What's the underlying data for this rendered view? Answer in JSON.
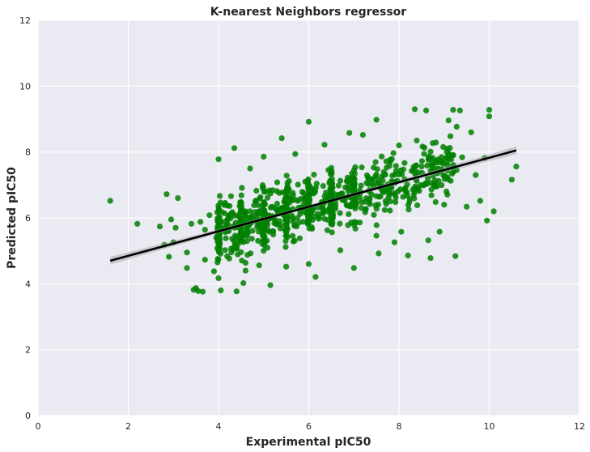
{
  "chart_data": {
    "type": "scatter",
    "title": "K-nearest Neighbors regressor",
    "xlabel": "Experimental pIC50",
    "ylabel": "Predicted pIC50",
    "xlim": [
      0,
      12
    ],
    "ylim": [
      0,
      12
    ],
    "x_ticks": [
      "0",
      "2",
      "4",
      "6",
      "8",
      "10",
      "12"
    ],
    "y_ticks": [
      "0",
      "2",
      "4",
      "6",
      "8",
      "10",
      "12"
    ],
    "grid": true,
    "legend": "none",
    "point_color": "#008000",
    "background_color": "#eaeaf2",
    "regression_line": {
      "color": "#000000",
      "x_start": 1.6,
      "y_start": 4.7,
      "x_end": 10.6,
      "y_end": 8.05,
      "ci_halfwidth_ends": 0.12,
      "ci_halfwidth_mid": 0.05
    },
    "series": [
      {
        "points": [
          [
            1.6,
            6.52
          ],
          [
            2.2,
            5.82
          ],
          [
            2.7,
            5.74
          ],
          [
            2.8,
            5.18
          ],
          [
            2.85,
            6.72
          ],
          [
            2.9,
            4.82
          ],
          [
            2.95,
            5.95
          ],
          [
            3.0,
            5.26
          ],
          [
            3.05,
            5.7
          ],
          [
            3.1,
            6.6
          ],
          [
            3.3,
            4.95
          ],
          [
            3.3,
            4.48
          ],
          [
            3.4,
            5.82
          ],
          [
            3.45,
            3.82
          ],
          [
            3.5,
            3.87
          ],
          [
            3.55,
            3.78
          ],
          [
            3.6,
            5.88
          ],
          [
            3.65,
            3.76
          ],
          [
            3.7,
            4.73
          ],
          [
            3.7,
            5.64
          ],
          [
            3.8,
            6.08
          ],
          [
            3.9,
            4.38
          ],
          [
            3.95,
            5.4
          ],
          [
            4.0,
            7.78
          ],
          [
            4.0,
            4.17
          ],
          [
            4.05,
            3.8
          ],
          [
            4.35,
            8.12
          ],
          [
            4.4,
            3.77
          ],
          [
            4.4,
            5.08
          ],
          [
            4.5,
            6.48
          ],
          [
            4.55,
            4.02
          ],
          [
            4.6,
            4.4
          ],
          [
            4.7,
            7.5
          ],
          [
            4.8,
            5.94
          ],
          [
            4.9,
            4.56
          ],
          [
            5.0,
            7.86
          ],
          [
            5.0,
            6.22
          ],
          [
            5.15,
            3.96
          ],
          [
            5.3,
            7.08
          ],
          [
            5.4,
            8.42
          ],
          [
            5.5,
            4.52
          ],
          [
            5.7,
            7.94
          ],
          [
            5.8,
            5.38
          ],
          [
            6.0,
            8.92
          ],
          [
            6.0,
            4.6
          ],
          [
            6.15,
            4.21
          ],
          [
            6.35,
            8.22
          ],
          [
            6.5,
            7.52
          ],
          [
            6.7,
            5.02
          ],
          [
            6.9,
            8.58
          ],
          [
            7.0,
            4.48
          ],
          [
            7.05,
            5.86
          ],
          [
            7.2,
            8.52
          ],
          [
            7.35,
            6.42
          ],
          [
            7.5,
            8.98
          ],
          [
            7.5,
            5.46
          ],
          [
            7.55,
            4.92
          ],
          [
            7.8,
            7.76
          ],
          [
            7.9,
            5.26
          ],
          [
            8.0,
            8.2
          ],
          [
            8.05,
            5.58
          ],
          [
            8.2,
            4.86
          ],
          [
            8.35,
            9.3
          ],
          [
            8.4,
            6.86
          ],
          [
            8.5,
            7.56
          ],
          [
            8.6,
            9.26
          ],
          [
            8.65,
            5.32
          ],
          [
            8.7,
            4.78
          ],
          [
            8.8,
            7.02
          ],
          [
            8.9,
            5.58
          ],
          [
            9.0,
            6.4
          ],
          [
            9.1,
            8.96
          ],
          [
            9.2,
            9.28
          ],
          [
            9.25,
            4.84
          ],
          [
            9.35,
            9.26
          ],
          [
            9.4,
            7.84
          ],
          [
            9.5,
            6.34
          ],
          [
            9.6,
            8.6
          ],
          [
            9.7,
            7.3
          ],
          [
            9.8,
            6.52
          ],
          [
            9.9,
            7.82
          ],
          [
            9.95,
            5.92
          ],
          [
            10.0,
            9.28
          ],
          [
            10.0,
            9.08
          ],
          [
            10.1,
            6.2
          ],
          [
            10.5,
            7.16
          ],
          [
            10.6,
            7.56
          ]
        ]
      }
    ]
  }
}
